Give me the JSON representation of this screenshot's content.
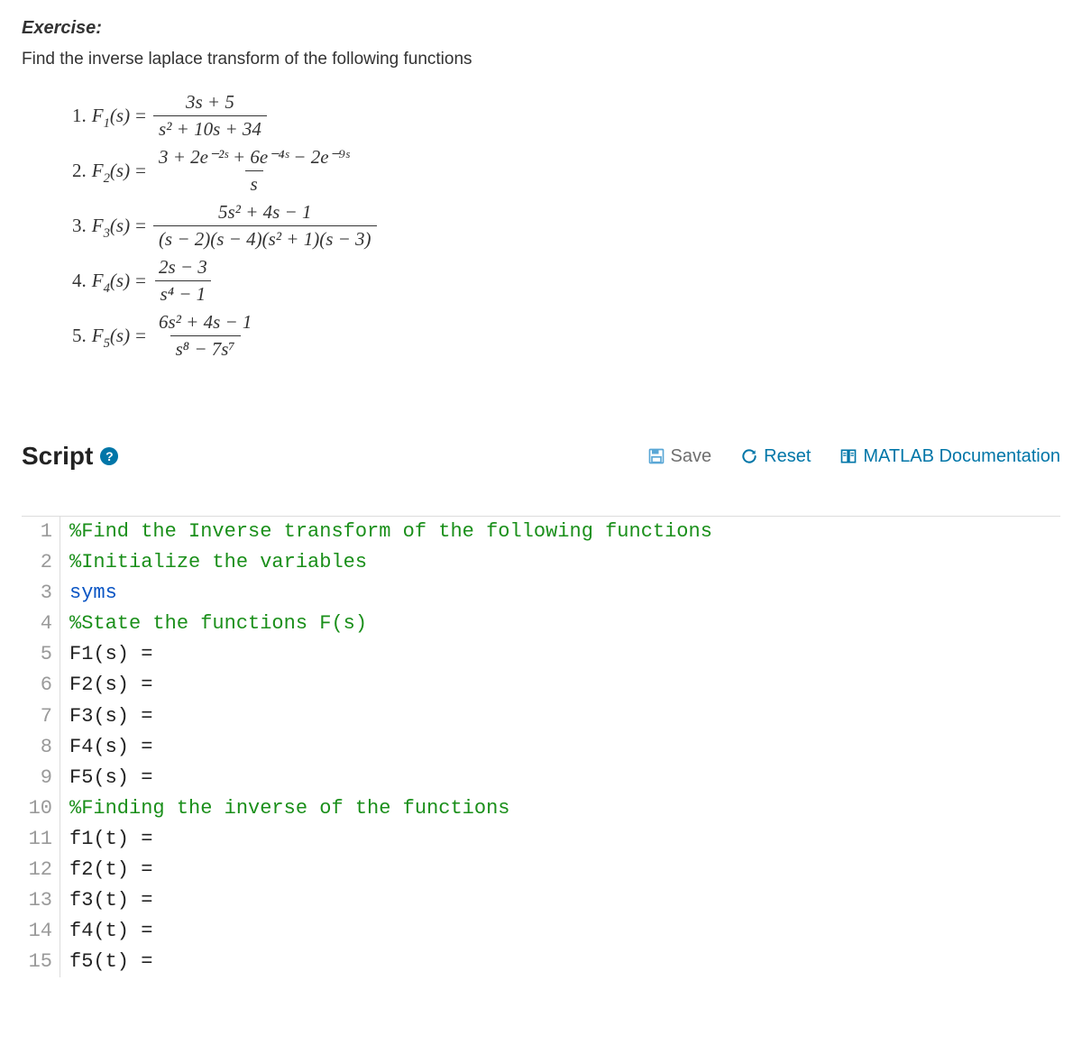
{
  "exercise": {
    "heading": "Exercise:",
    "prompt": "Find the inverse laplace transform of the following functions"
  },
  "equations": [
    {
      "index": "1.",
      "lhs_fn": "F",
      "lhs_sub": "1",
      "lhs_arg": "(s)",
      "numerator": "3s + 5",
      "denominator": "s² + 10s + 34"
    },
    {
      "index": "2.",
      "lhs_fn": "F",
      "lhs_sub": "2",
      "lhs_arg": "(s)",
      "numerator": "3 + 2e⁻²ˢ + 6e⁻⁴ˢ − 2e⁻⁹ˢ",
      "denominator": "s"
    },
    {
      "index": "3.",
      "lhs_fn": "F",
      "lhs_sub": "3",
      "lhs_arg": "(s)",
      "numerator": "5s² + 4s − 1",
      "denominator": "(s − 2)(s − 4)(s² + 1)(s − 3)"
    },
    {
      "index": "4.",
      "lhs_fn": "F",
      "lhs_sub": "4",
      "lhs_arg": "(s)",
      "numerator": "2s − 3",
      "denominator": "s⁴ − 1"
    },
    {
      "index": "5.",
      "lhs_fn": "F",
      "lhs_sub": "5",
      "lhs_arg": "(s)",
      "numerator": "6s² + 4s − 1",
      "denominator": "s⁸ − 7s⁷"
    }
  ],
  "script": {
    "title": "Script",
    "help_glyph": "?",
    "actions": {
      "save": "Save",
      "reset": "Reset",
      "docs": "MATLAB Documentation"
    }
  },
  "code": {
    "lines": [
      {
        "n": "1",
        "type": "comment",
        "text": "%Find the Inverse transform of the following functions"
      },
      {
        "n": "2",
        "type": "comment",
        "text": "%Initialize the variables"
      },
      {
        "n": "3",
        "type": "kw",
        "text": "syms"
      },
      {
        "n": "4",
        "type": "comment",
        "text": "%State the functions F(s)"
      },
      {
        "n": "5",
        "type": "plain",
        "text": "F1(s) ="
      },
      {
        "n": "6",
        "type": "plain",
        "text": "F2(s) ="
      },
      {
        "n": "7",
        "type": "plain",
        "text": "F3(s) ="
      },
      {
        "n": "8",
        "type": "plain",
        "text": "F4(s) ="
      },
      {
        "n": "9",
        "type": "plain",
        "text": "F5(s) ="
      },
      {
        "n": "10",
        "type": "comment",
        "text": "%Finding the inverse of the functions"
      },
      {
        "n": "11",
        "type": "plain",
        "text": "f1(t) ="
      },
      {
        "n": "12",
        "type": "plain",
        "text": "f2(t) ="
      },
      {
        "n": "13",
        "type": "plain",
        "text": "f3(t) ="
      },
      {
        "n": "14",
        "type": "plain",
        "text": "f4(t) ="
      },
      {
        "n": "15",
        "type": "plain",
        "text": "f5(t) ="
      }
    ]
  },
  "colors": {
    "comment": "#1a8f1a",
    "keyword": "#0a55c4",
    "plain": "#222222",
    "gutter": "#9a9a9a",
    "link": "#0076a8",
    "muted": "#6f6f6f",
    "border": "#dcdcdc"
  },
  "fonts": {
    "body": "Arial",
    "math": "Times New Roman",
    "code": "Consolas",
    "heading_size_pt": 20,
    "body_size_pt": 19,
    "math_size_pt": 21,
    "script_title_pt": 28,
    "action_size_pt": 20,
    "code_size_pt": 22
  }
}
